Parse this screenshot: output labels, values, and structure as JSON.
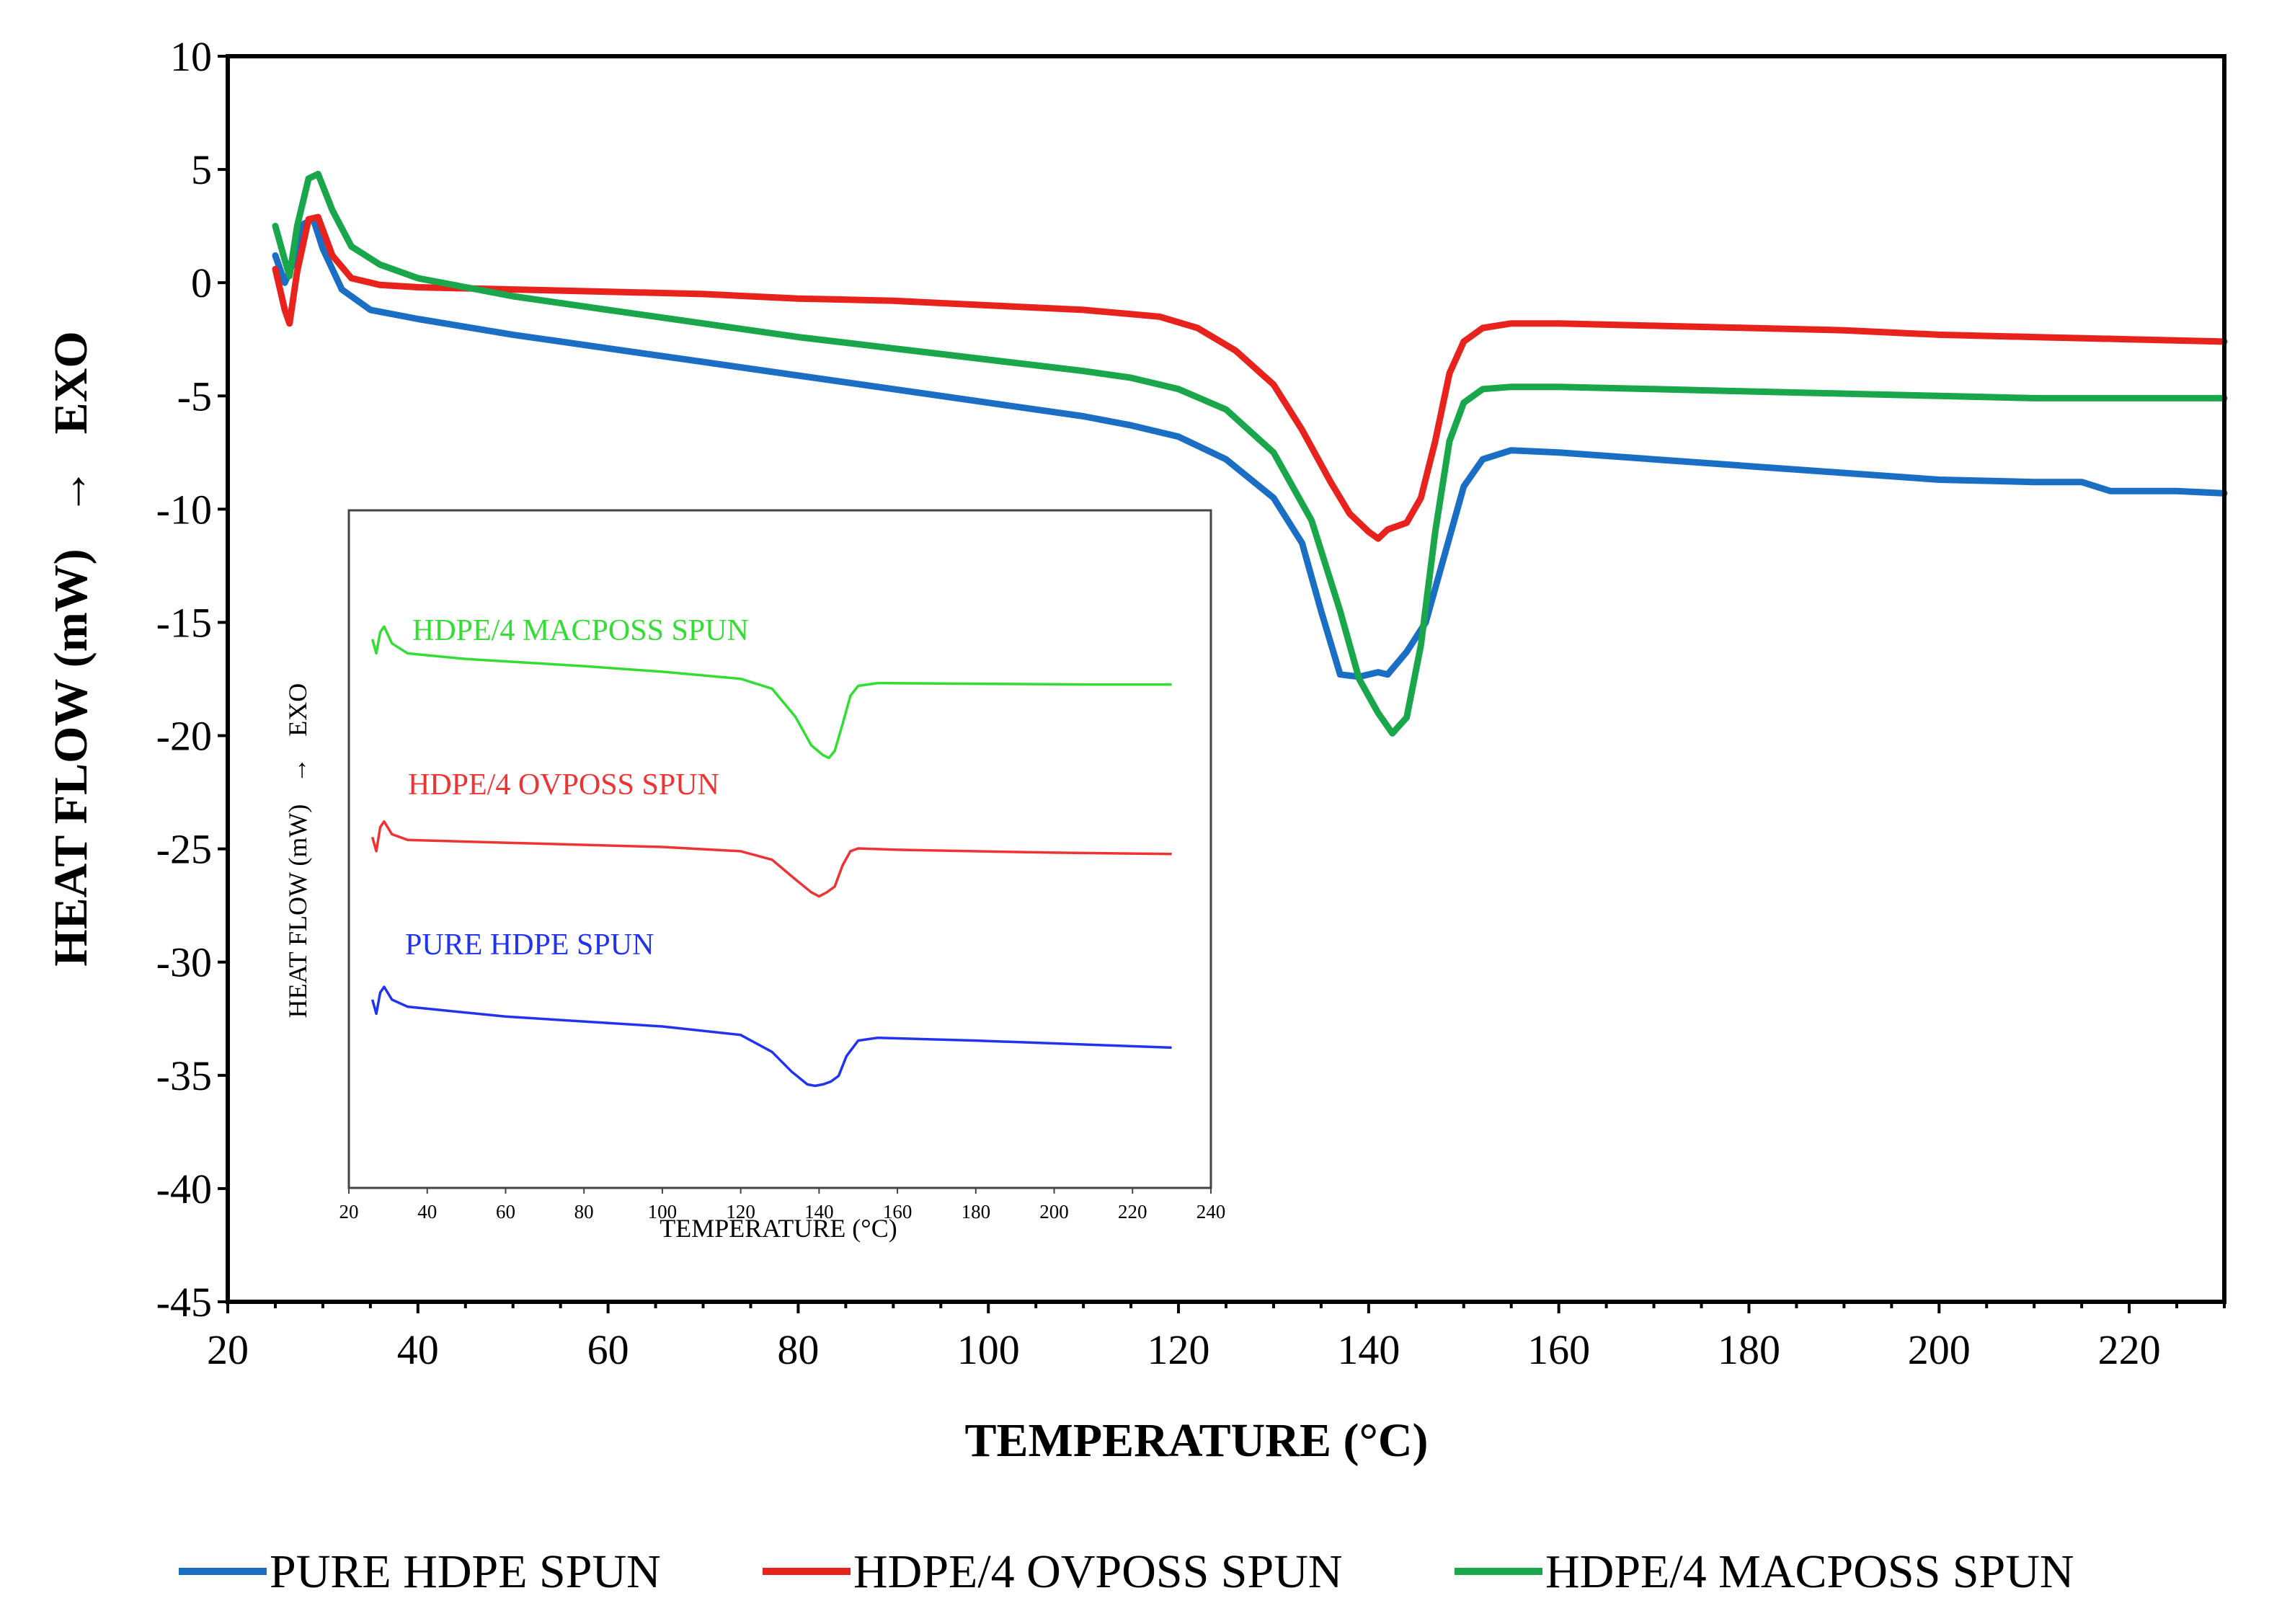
{
  "chart_data": [
    {
      "id": "main",
      "type": "line",
      "title": "",
      "xlabel": "TEMPERATURE (°C)",
      "ylabel_parts": [
        "HEAT FLOW (mW)",
        "→",
        "EXO"
      ],
      "xlim": [
        20,
        230
      ],
      "ylim": [
        -45,
        10
      ],
      "xticks": [
        20,
        40,
        60,
        80,
        100,
        120,
        140,
        160,
        180,
        200,
        220
      ],
      "yticks": [
        10,
        5,
        0,
        -5,
        -10,
        -15,
        -20,
        -25,
        -30,
        -35,
        -40,
        -45
      ],
      "grid": false,
      "legend_position": "bottom",
      "series": [
        {
          "name": "PURE HDPE SPUN",
          "color": "#1a6fc4",
          "points": [
            [
              25,
              1.2
            ],
            [
              26,
              0.0
            ],
            [
              26.8,
              0.8
            ],
            [
              28,
              2.6
            ],
            [
              29,
              2.8
            ],
            [
              30,
              1.5
            ],
            [
              32,
              -0.3
            ],
            [
              35,
              -1.2
            ],
            [
              40,
              -1.6
            ],
            [
              50,
              -2.3
            ],
            [
              60,
              -2.9
            ],
            [
              70,
              -3.5
            ],
            [
              80,
              -4.1
            ],
            [
              90,
              -4.7
            ],
            [
              100,
              -5.3
            ],
            [
              110,
              -5.9
            ],
            [
              115,
              -6.3
            ],
            [
              120,
              -6.8
            ],
            [
              125,
              -7.8
            ],
            [
              130,
              -9.5
            ],
            [
              133,
              -11.5
            ],
            [
              135,
              -14.5
            ],
            [
              137,
              -17.3
            ],
            [
              139,
              -17.4
            ],
            [
              141,
              -17.2
            ],
            [
              142,
              -17.3
            ],
            [
              144,
              -16.3
            ],
            [
              146,
              -15.0
            ],
            [
              148,
              -12.0
            ],
            [
              150,
              -9.0
            ],
            [
              152,
              -7.8
            ],
            [
              155,
              -7.4
            ],
            [
              160,
              -7.5
            ],
            [
              170,
              -7.8
            ],
            [
              180,
              -8.1
            ],
            [
              190,
              -8.4
            ],
            [
              200,
              -8.7
            ],
            [
              210,
              -8.8
            ],
            [
              215,
              -8.8
            ],
            [
              218,
              -9.2
            ],
            [
              225,
              -9.2
            ],
            [
              230,
              -9.3
            ]
          ]
        },
        {
          "name": "HDPE/4 OVPOSS SPUN",
          "color": "#e8221c",
          "points": [
            [
              25,
              0.6
            ],
            [
              26,
              -1.2
            ],
            [
              26.5,
              -1.8
            ],
            [
              27.3,
              0.5
            ],
            [
              28.5,
              2.8
            ],
            [
              29.5,
              2.9
            ],
            [
              31,
              1.2
            ],
            [
              33,
              0.2
            ],
            [
              36,
              -0.1
            ],
            [
              40,
              -0.2
            ],
            [
              50,
              -0.3
            ],
            [
              60,
              -0.4
            ],
            [
              70,
              -0.5
            ],
            [
              80,
              -0.7
            ],
            [
              90,
              -0.8
            ],
            [
              100,
              -1.0
            ],
            [
              110,
              -1.2
            ],
            [
              118,
              -1.5
            ],
            [
              122,
              -2.0
            ],
            [
              126,
              -3.0
            ],
            [
              130,
              -4.5
            ],
            [
              133,
              -6.5
            ],
            [
              136,
              -8.8
            ],
            [
              138,
              -10.2
            ],
            [
              140,
              -11.0
            ],
            [
              141,
              -11.3
            ],
            [
              142,
              -10.9
            ],
            [
              144,
              -10.6
            ],
            [
              145.5,
              -9.5
            ],
            [
              147,
              -7.0
            ],
            [
              148.5,
              -4.0
            ],
            [
              150,
              -2.6
            ],
            [
              152,
              -2.0
            ],
            [
              155,
              -1.8
            ],
            [
              160,
              -1.8
            ],
            [
              170,
              -1.9
            ],
            [
              180,
              -2.0
            ],
            [
              190,
              -2.1
            ],
            [
              200,
              -2.3
            ],
            [
              210,
              -2.4
            ],
            [
              220,
              -2.5
            ],
            [
              230,
              -2.6
            ]
          ]
        },
        {
          "name": "HDPE/4 MACPOSS SPUN",
          "color": "#1aa64a",
          "points": [
            [
              25,
              2.5
            ],
            [
              26,
              1.0
            ],
            [
              26.5,
              0.3
            ],
            [
              27.3,
              2.5
            ],
            [
              28.5,
              4.6
            ],
            [
              29.5,
              4.8
            ],
            [
              31,
              3.2
            ],
            [
              33,
              1.6
            ],
            [
              36,
              0.8
            ],
            [
              40,
              0.2
            ],
            [
              50,
              -0.6
            ],
            [
              60,
              -1.2
            ],
            [
              70,
              -1.8
            ],
            [
              80,
              -2.4
            ],
            [
              90,
              -2.9
            ],
            [
              100,
              -3.4
            ],
            [
              110,
              -3.9
            ],
            [
              115,
              -4.2
            ],
            [
              120,
              -4.7
            ],
            [
              125,
              -5.6
            ],
            [
              130,
              -7.5
            ],
            [
              134,
              -10.5
            ],
            [
              137,
              -14.5
            ],
            [
              139,
              -17.5
            ],
            [
              141,
              -19.0
            ],
            [
              142.5,
              -19.9
            ],
            [
              144,
              -19.2
            ],
            [
              145.5,
              -16.0
            ],
            [
              147,
              -11.0
            ],
            [
              148.5,
              -7.0
            ],
            [
              150,
              -5.3
            ],
            [
              152,
              -4.7
            ],
            [
              155,
              -4.6
            ],
            [
              160,
              -4.6
            ],
            [
              170,
              -4.7
            ],
            [
              180,
              -4.8
            ],
            [
              190,
              -4.9
            ],
            [
              200,
              -5.0
            ],
            [
              210,
              -5.1
            ],
            [
              220,
              -5.1
            ],
            [
              230,
              -5.1
            ]
          ]
        }
      ]
    },
    {
      "id": "inset",
      "type": "line",
      "title": "",
      "xlabel": "TEMPERATURE (°C)",
      "ylabel_parts": [
        "HEAT FLOW (mW)",
        "→",
        "EXO"
      ],
      "xlim": [
        20,
        240
      ],
      "xticks": [
        20,
        40,
        60,
        80,
        100,
        120,
        140,
        160,
        180,
        200,
        220,
        240
      ],
      "yticks": [],
      "grid": false,
      "series": [
        {
          "name": "HDPE/4 MACPOSS SPUN",
          "label": "HDPE/4 MACPOSS SPUN",
          "color": "#33dd33",
          "points": [
            [
              26,
              1.0
            ],
            [
              27,
              0.0
            ],
            [
              28,
              1.5
            ],
            [
              29,
              1.9
            ],
            [
              31,
              0.7
            ],
            [
              35,
              0.0
            ],
            [
              50,
              -0.4
            ],
            [
              80,
              -0.9
            ],
            [
              100,
              -1.3
            ],
            [
              120,
              -1.8
            ],
            [
              128,
              -2.5
            ],
            [
              134,
              -4.5
            ],
            [
              138,
              -6.5
            ],
            [
              141,
              -7.2
            ],
            [
              142.5,
              -7.4
            ],
            [
              144,
              -6.9
            ],
            [
              146,
              -5.0
            ],
            [
              148,
              -3.0
            ],
            [
              150,
              -2.3
            ],
            [
              155,
              -2.1
            ],
            [
              180,
              -2.15
            ],
            [
              210,
              -2.2
            ],
            [
              230,
              -2.2
            ]
          ]
        },
        {
          "name": "HDPE/4 OVPOSS SPUN",
          "label": "HDPE/4 OVPOSS SPUN",
          "color": "#ee3333",
          "points": [
            [
              26,
              -13.0
            ],
            [
              27,
              -14.0
            ],
            [
              28,
              -12.3
            ],
            [
              29,
              -11.9
            ],
            [
              31,
              -12.8
            ],
            [
              35,
              -13.2
            ],
            [
              60,
              -13.4
            ],
            [
              100,
              -13.7
            ],
            [
              120,
              -14.0
            ],
            [
              128,
              -14.6
            ],
            [
              134,
              -16.0
            ],
            [
              138,
              -16.9
            ],
            [
              140,
              -17.2
            ],
            [
              142,
              -16.9
            ],
            [
              144,
              -16.5
            ],
            [
              146,
              -15.0
            ],
            [
              148,
              -14.0
            ],
            [
              150,
              -13.8
            ],
            [
              160,
              -13.9
            ],
            [
              200,
              -14.1
            ],
            [
              230,
              -14.2
            ]
          ]
        },
        {
          "name": "PURE HDPE SPUN",
          "label": "PURE HDPE SPUN",
          "color": "#2233ee",
          "points": [
            [
              26,
              -24.5
            ],
            [
              27,
              -25.5
            ],
            [
              28,
              -24.0
            ],
            [
              29,
              -23.6
            ],
            [
              31,
              -24.5
            ],
            [
              35,
              -25.0
            ],
            [
              60,
              -25.7
            ],
            [
              100,
              -26.4
            ],
            [
              120,
              -27.0
            ],
            [
              128,
              -28.2
            ],
            [
              133,
              -29.6
            ],
            [
              137,
              -30.5
            ],
            [
              139,
              -30.6
            ],
            [
              141,
              -30.5
            ],
            [
              143,
              -30.3
            ],
            [
              145,
              -29.9
            ],
            [
              147,
              -28.5
            ],
            [
              150,
              -27.4
            ],
            [
              155,
              -27.2
            ],
            [
              180,
              -27.4
            ],
            [
              210,
              -27.7
            ],
            [
              230,
              -27.9
            ]
          ]
        }
      ]
    }
  ],
  "legend": [
    {
      "label": "PURE HDPE SPUN",
      "color": "#1a6fc4"
    },
    {
      "label": "HDPE/4 OVPOSS SPUN",
      "color": "#e8221c"
    },
    {
      "label": "HDPE/4 MACPOSS SPUN",
      "color": "#1aa64a"
    }
  ]
}
